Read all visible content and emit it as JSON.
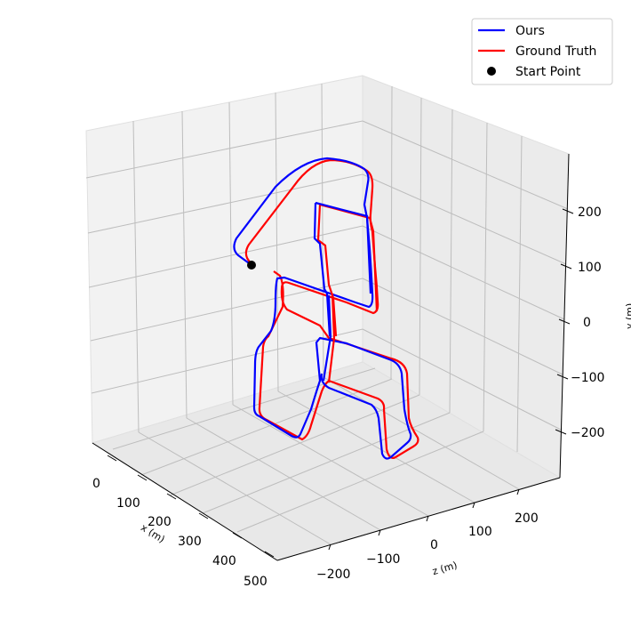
{
  "chart_data": {
    "type": "line",
    "projection": "3d",
    "xlabel": "x (m)",
    "ylabel": "y (m)",
    "zlabel": "z (m)",
    "x_ticks": [
      "0",
      "100",
      "200",
      "300",
      "400",
      "500"
    ],
    "y_ticks": [
      "200",
      "100",
      "0",
      "−100",
      "−200"
    ],
    "z_ticks": [
      "−200",
      "−100",
      "0",
      "100",
      "200"
    ],
    "legend_position": "top-right",
    "grid": true,
    "series": [
      {
        "name": "Ours",
        "color": "#0000ff"
      },
      {
        "name": "Ground Truth",
        "color": "#ff0000"
      },
      {
        "name": "Start Point",
        "color": "#000000",
        "marker": "circle"
      }
    ]
  }
}
